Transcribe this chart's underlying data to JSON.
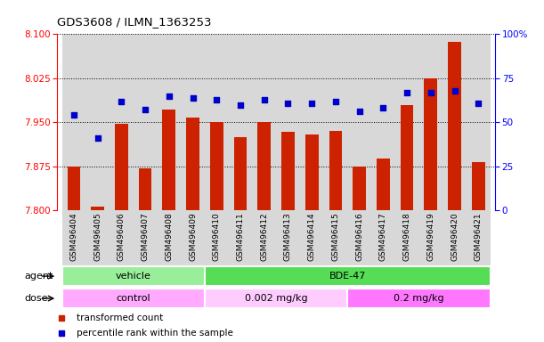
{
  "title": "GDS3608 / ILMN_1363253",
  "samples": [
    "GSM496404",
    "GSM496405",
    "GSM496406",
    "GSM496407",
    "GSM496408",
    "GSM496409",
    "GSM496410",
    "GSM496411",
    "GSM496412",
    "GSM496413",
    "GSM496414",
    "GSM496415",
    "GSM496416",
    "GSM496417",
    "GSM496418",
    "GSM496419",
    "GSM496420",
    "GSM496421"
  ],
  "transformed_count": [
    7.875,
    7.806,
    7.947,
    7.872,
    7.972,
    7.958,
    7.95,
    7.924,
    7.951,
    7.933,
    7.929,
    7.935,
    7.875,
    7.888,
    7.98,
    8.025,
    8.087,
    7.882
  ],
  "percentile_rank": [
    54,
    41,
    62,
    57,
    65,
    64,
    63,
    60,
    63,
    61,
    61,
    62,
    56,
    58,
    67,
    67,
    68,
    61
  ],
  "ylim_left": [
    7.8,
    8.1
  ],
  "ylim_right": [
    0,
    100
  ],
  "yticks_left": [
    7.8,
    7.875,
    7.95,
    8.025,
    8.1
  ],
  "yticks_right": [
    0,
    25,
    50,
    75,
    100
  ],
  "ytick_labels_right": [
    "0",
    "25",
    "50",
    "75",
    "100%"
  ],
  "bar_color": "#cc2200",
  "dot_color": "#0000cc",
  "bar_bottom": 7.8,
  "agent_groups": [
    {
      "label": "vehicle",
      "start": 0,
      "end": 5,
      "color": "#99ee99"
    },
    {
      "label": "BDE-47",
      "start": 6,
      "end": 17,
      "color": "#55dd55"
    }
  ],
  "dose_groups": [
    {
      "label": "control",
      "start": 0,
      "end": 5,
      "color": "#ffaaff"
    },
    {
      "label": "0.002 mg/kg",
      "start": 6,
      "end": 11,
      "color": "#ffccff"
    },
    {
      "label": "0.2 mg/kg",
      "start": 12,
      "end": 17,
      "color": "#ff77ff"
    }
  ],
  "legend_items": [
    {
      "color": "#cc2200",
      "label": "transformed count"
    },
    {
      "color": "#0000cc",
      "label": "percentile rank within the sample"
    }
  ],
  "col_bg_color": "#d8d8d8",
  "grid_linestyle": ":",
  "grid_color": "black",
  "grid_linewidth": 0.7
}
